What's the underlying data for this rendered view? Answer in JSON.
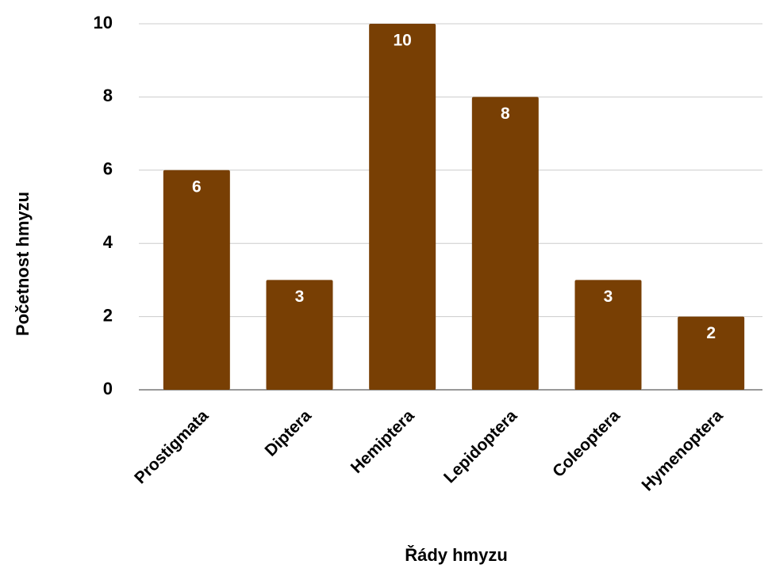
{
  "chart_data": {
    "type": "bar",
    "x_label": "Řády hmyzu",
    "y_label": "Početnost hmyzu",
    "categories": [
      "Prostigmata",
      "Diptera",
      "Hemiptera",
      "Lepidoptera",
      "Coleoptera",
      "Hymenoptera"
    ],
    "values": [
      6,
      3,
      10,
      8,
      3,
      2
    ],
    "color": "#783f04",
    "ylim": [
      0,
      10
    ],
    "yticks": [
      0,
      2,
      4,
      6,
      8,
      10
    ],
    "grid": true
  }
}
